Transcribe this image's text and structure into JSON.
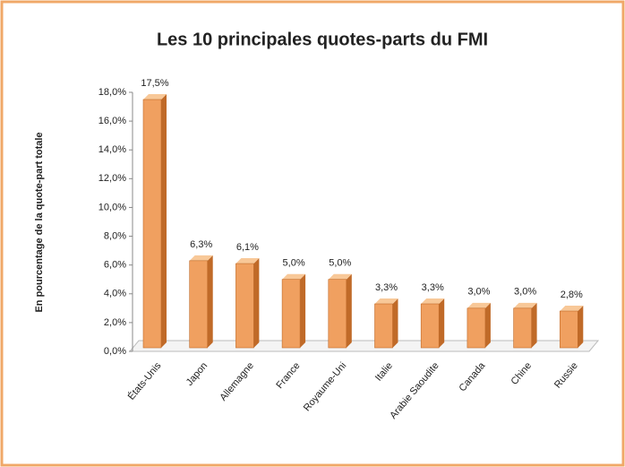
{
  "chart_data": {
    "type": "bar3d",
    "title": "Les 10 principales quotes-parts du FMI",
    "y_label": "En pourcentage de la quote-part totale",
    "categories": [
      "États-Unis",
      "Japon",
      "Allemagne",
      "France",
      "Royaume-Uni",
      "Italie",
      "Arabie Saoudite",
      "Canada",
      "Chine",
      "Russie"
    ],
    "values": [
      17.5,
      6.3,
      6.1,
      5.0,
      5.0,
      3.3,
      3.3,
      3.0,
      3.0,
      2.8
    ],
    "value_labels": [
      "17,5%",
      "6,3%",
      "6,1%",
      "5,0%",
      "5,0%",
      "3,3%",
      "3,3%",
      "3,0%",
      "3,0%",
      "2,8%"
    ],
    "color": "#f0a060",
    "ylim": [
      0,
      18
    ],
    "yticks": [
      {
        "value": 0,
        "label": "0,0%"
      },
      {
        "value": 2,
        "label": "2,0%"
      },
      {
        "value": 4,
        "label": "4,0%"
      },
      {
        "value": 6,
        "label": "6,0%"
      },
      {
        "value": 8,
        "label": "8,0%"
      },
      {
        "value": 10,
        "label": "10,0%"
      },
      {
        "value": 12,
        "label": "12,0%"
      },
      {
        "value": 14,
        "label": "14,0%"
      },
      {
        "value": 16,
        "label": "16,0%"
      },
      {
        "value": 18,
        "label": "18,0%"
      }
    ]
  }
}
